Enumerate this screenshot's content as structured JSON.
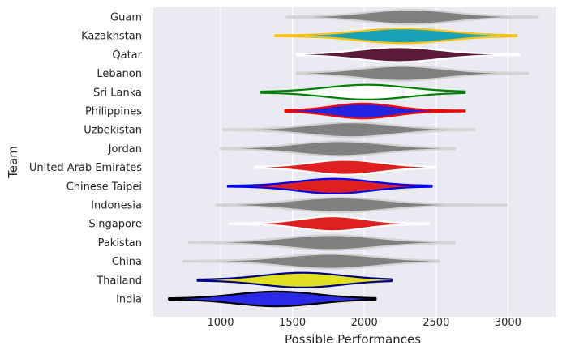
{
  "chart_data": {
    "type": "violin",
    "orientation": "horizontal",
    "xlabel": "Possible Performances",
    "ylabel": "Team",
    "xlim": [
      600,
      3250
    ],
    "xticks": [
      1000,
      1500,
      2000,
      2500,
      3000
    ],
    "grid": true,
    "legend": "none",
    "colors": {
      "background": "#EAEAF2",
      "grid": "#FFFFFF",
      "neutral_fill": "#808080",
      "neutral_edge": "#D3D3D3"
    },
    "teams": [
      {
        "name": "Guam",
        "fill": "#808080",
        "edge": "#D3D3D3",
        "min": 1460,
        "q1": 2130,
        "median": 2320,
        "q3": 2520,
        "max": 3210
      },
      {
        "name": "Kazakhstan",
        "fill": "#17A2B8",
        "edge": "#FFC107",
        "min": 1380,
        "q1": 2070,
        "median": 2270,
        "q3": 2470,
        "max": 3060
      },
      {
        "name": "Qatar",
        "fill": "#5C1A3A",
        "edge": "#FFFFFF",
        "min": 1530,
        "q1": 2060,
        "median": 2240,
        "q3": 2430,
        "max": 3080
      },
      {
        "name": "Lebanon",
        "fill": "#808080",
        "edge": "#D3D3D3",
        "min": 1530,
        "q1": 2070,
        "median": 2260,
        "q3": 2450,
        "max": 3140
      },
      {
        "name": "Sri Lanka",
        "fill": "#FFFFFF",
        "edge": "#008000",
        "min": 1280,
        "q1": 1830,
        "median": 2020,
        "q3": 2210,
        "max": 2700
      },
      {
        "name": "Philippines",
        "fill": "#2424E0",
        "edge": "#FF0000",
        "min": 1450,
        "q1": 1850,
        "median": 1990,
        "q3": 2140,
        "max": 2700
      },
      {
        "name": "Uzbekistan",
        "fill": "#808080",
        "edge": "#D3D3D3",
        "min": 1020,
        "q1": 1720,
        "median": 1910,
        "q3": 2110,
        "max": 2770
      },
      {
        "name": "Jordan",
        "fill": "#808080",
        "edge": "#D3D3D3",
        "min": 1000,
        "q1": 1630,
        "median": 1830,
        "q3": 2030,
        "max": 2630
      },
      {
        "name": "United Arab Emirates",
        "fill": "#E02020",
        "edge": "#FFFFFF",
        "min": 1240,
        "q1": 1710,
        "median": 1870,
        "q3": 2030,
        "max": 2490
      },
      {
        "name": "Chinese Taipei",
        "fill": "#E02020",
        "edge": "#0000FF",
        "min": 1050,
        "q1": 1620,
        "median": 1790,
        "q3": 1960,
        "max": 2470
      },
      {
        "name": "Indonesia",
        "fill": "#808080",
        "edge": "#D3D3D3",
        "min": 970,
        "q1": 1620,
        "median": 1830,
        "q3": 2040,
        "max": 2990
      },
      {
        "name": "Singapore",
        "fill": "#E02020",
        "edge": "#FFFFFF",
        "min": 1060,
        "q1": 1640,
        "median": 1780,
        "q3": 1930,
        "max": 2450
      },
      {
        "name": "Pakistan",
        "fill": "#808080",
        "edge": "#D3D3D3",
        "min": 780,
        "q1": 1560,
        "median": 1770,
        "q3": 1980,
        "max": 2630
      },
      {
        "name": "China",
        "fill": "#808080",
        "edge": "#D3D3D3",
        "min": 740,
        "q1": 1550,
        "median": 1760,
        "q3": 1970,
        "max": 2520
      },
      {
        "name": "Thailand",
        "fill": "#E0E020",
        "edge": "#000080",
        "min": 840,
        "q1": 1390,
        "median": 1570,
        "q3": 1760,
        "max": 2190
      },
      {
        "name": "India",
        "fill": "#2A2AE8",
        "edge": "#000000",
        "min": 640,
        "q1": 1200,
        "median": 1390,
        "q3": 1580,
        "max": 2080
      }
    ]
  }
}
